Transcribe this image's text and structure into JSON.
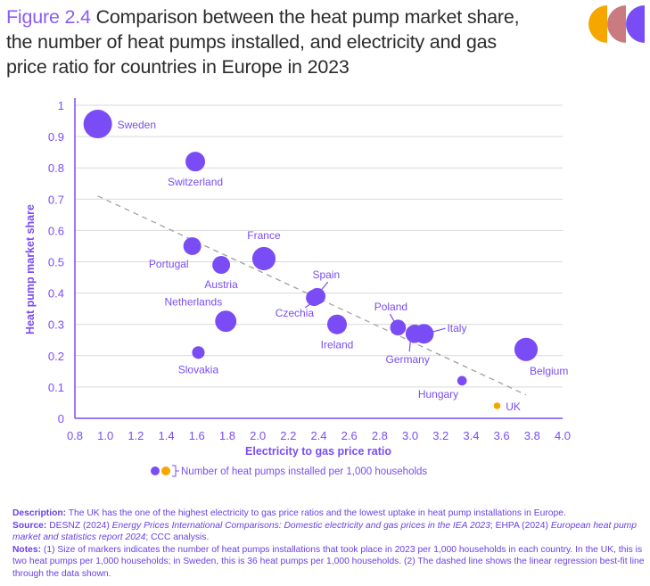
{
  "header": {
    "figure_number": "Figure 2.4",
    "title": "Comparison between the heat pump market share, the number of heat pumps installed, and electricity and gas price ratio for countries in Europe in 2023"
  },
  "logo": {
    "name": "ccc-logo",
    "colors": [
      "#f5a700",
      "#c97b80",
      "#7a4cf5"
    ]
  },
  "chart_data": {
    "type": "scatter",
    "title": "Comparison between the heat pump market share, the number of heat pumps installed, and electricity and gas price ratio for countries in Europe in 2023",
    "xlabel": "Electricity to gas price ratio",
    "ylabel": "Heat pump market share",
    "xlim": [
      0.8,
      4.0
    ],
    "ylim": [
      0,
      1
    ],
    "xticks": [
      "0.8",
      "1.0",
      "1.2",
      "1.4",
      "1.6",
      "1.8",
      "2.0",
      "2.2",
      "2.4",
      "2.6",
      "2.8",
      "3.0",
      "3.2",
      "3.4",
      "3.6",
      "3.8",
      "4.0"
    ],
    "yticks": [
      "0",
      "0.1",
      "0.2",
      "0.3",
      "0.4",
      "0.5",
      "0.6",
      "0.7",
      "0.8",
      "0.9",
      "1"
    ],
    "grid": "horizontal",
    "size_meaning": "Number of heat pumps installed per 1,000 households (marker area)",
    "colors": {
      "default": "#7a4cf5",
      "highlight": "#f5a700",
      "trend": "#a0a0a0",
      "axis": "#7a4cf5",
      "grid": "#d9d9d9"
    },
    "points": [
      {
        "country": "Sweden",
        "x": 0.95,
        "y": 0.94,
        "size": 36,
        "color": "default",
        "label_pos": "right"
      },
      {
        "country": "Switzerland",
        "x": 1.59,
        "y": 0.82,
        "size": 17,
        "color": "default",
        "label_pos": "below"
      },
      {
        "country": "Portugal",
        "x": 1.57,
        "y": 0.55,
        "size": 14,
        "color": "default",
        "label_pos": "below-left"
      },
      {
        "country": "Austria",
        "x": 1.76,
        "y": 0.49,
        "size": 14,
        "color": "default",
        "label_pos": "below"
      },
      {
        "country": "France",
        "x": 2.04,
        "y": 0.51,
        "size": 24,
        "color": "default",
        "label_pos": "above"
      },
      {
        "country": "Netherlands",
        "x": 1.79,
        "y": 0.31,
        "size": 20,
        "color": "default",
        "label_pos": "above-left"
      },
      {
        "country": "Slovakia",
        "x": 1.61,
        "y": 0.21,
        "size": 7,
        "color": "default",
        "label_pos": "below"
      },
      {
        "country": "Spain",
        "x": 2.39,
        "y": 0.39,
        "size": 12,
        "color": "default",
        "label_pos": "above-leader"
      },
      {
        "country": "Czechia",
        "x": 2.37,
        "y": 0.385,
        "size": 12,
        "color": "default",
        "label_pos": "below-left-leader"
      },
      {
        "country": "Ireland",
        "x": 2.52,
        "y": 0.3,
        "size": 17,
        "color": "default",
        "label_pos": "below"
      },
      {
        "country": "Poland",
        "x": 2.92,
        "y": 0.29,
        "size": 11,
        "color": "default",
        "label_pos": "above-left-leader"
      },
      {
        "country": "Germany",
        "x": 3.03,
        "y": 0.27,
        "size": 15,
        "color": "default",
        "label_pos": "below-leader"
      },
      {
        "country": "Italy",
        "x": 3.09,
        "y": 0.27,
        "size": 17,
        "color": "default",
        "label_pos": "right-leader"
      },
      {
        "country": "Belgium",
        "x": 3.76,
        "y": 0.22,
        "size": 24,
        "color": "default",
        "label_pos": "below-right"
      },
      {
        "country": "Hungary",
        "x": 3.34,
        "y": 0.12,
        "size": 4,
        "color": "default",
        "label_pos": "below-left"
      },
      {
        "country": "UK",
        "x": 3.57,
        "y": 0.04,
        "size": 2,
        "color": "highlight",
        "label_pos": "right"
      }
    ],
    "trendline": {
      "style": "dashed",
      "label": "Linear regression best-fit line",
      "from": [
        0.95,
        0.71
      ],
      "to": [
        3.76,
        0.075
      ]
    },
    "legend": {
      "label": "Number of heat pumps installed per 1,000 households",
      "placement": "bottom-center"
    }
  },
  "footer": {
    "description_label": "Description:",
    "description": "The UK has the one of the highest electricity to gas price ratios and the lowest uptake in heat pump installations in Europe.",
    "source_label": "Source:",
    "source_pre": "DESNZ (2024) ",
    "source_italic1": "Energy Prices International Comparisons: Domestic electricity and gas prices in the IEA 2023",
    "source_mid": "; EHPA (2024) ",
    "source_italic2": "European heat pump market and statistics report 2024",
    "source_post": "; CCC analysis.",
    "notes_label": "Notes:",
    "notes": "(1) Size of markers indicates the number of heat pumps installations that took place in 2023 per 1,000 households in each country. In the UK, this is two heat pumps per 1,000 households; in Sweden, this is 36 heat pumps per 1,000 households. (2) The dashed line shows the linear regression best-fit line through the data shown."
  }
}
